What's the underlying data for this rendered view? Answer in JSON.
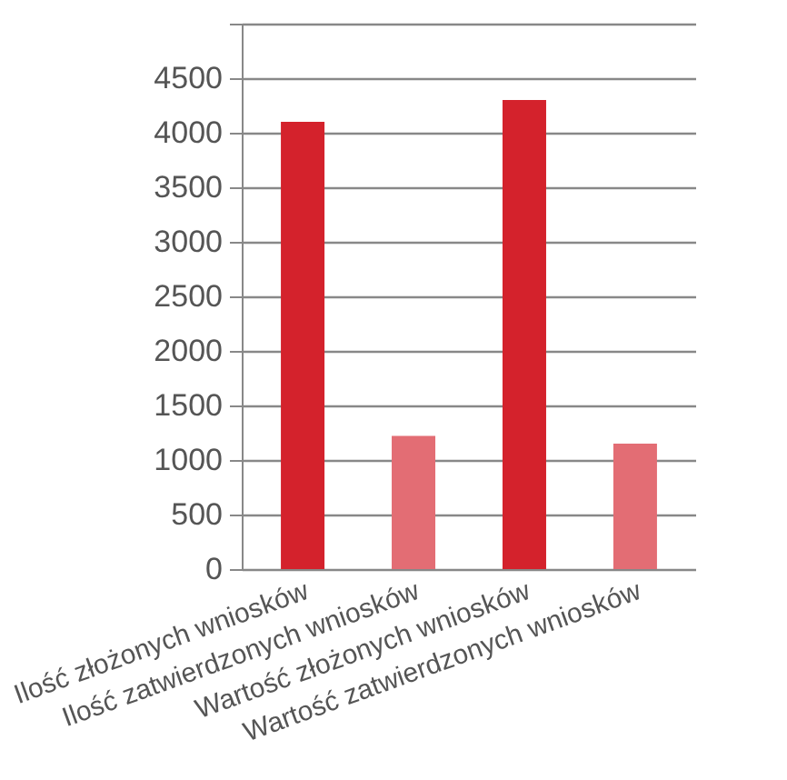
{
  "chart_data": {
    "type": "bar",
    "categories": [
      "Ilość złożonych wniosków",
      "Ilość zatwierdzonych wniosków",
      "Wartość złożonych wniosków",
      "Wartość zatwierdzonych wniosków"
    ],
    "values": [
      4100,
      1220,
      4300,
      1150
    ],
    "colors": [
      "#d4222c",
      "#e36d74",
      "#d4222c",
      "#e36d74"
    ],
    "ylim": [
      0,
      5000
    ],
    "yticks": [
      0,
      500,
      1000,
      1500,
      2000,
      2500,
      3000,
      3500,
      4000,
      4500,
      {
        "value": 5000,
        "label": null
      }
    ],
    "grid": "y"
  }
}
